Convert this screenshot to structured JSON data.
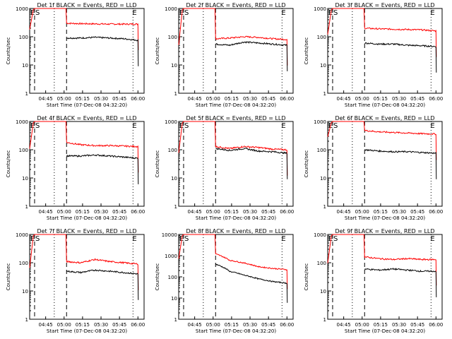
{
  "chart_data": [
    {
      "type": "line",
      "title": "Det 1f BLACK = Events, RED = LLD",
      "ylabel": "Counts/sec",
      "xlabel": "Start Time (07-Dec-08 04:32:20)",
      "yscale": "log",
      "ylim": [
        1,
        1000
      ],
      "y_ticks": [
        "1",
        "10",
        "100",
        "1000"
      ],
      "x_ticks": [
        "04:45",
        "05:00",
        "05:15",
        "05:30",
        "05:45",
        "06:00"
      ],
      "markers": {
        "dashed_left": "04:36",
        "dotted": "04:52",
        "dashed_right": "05:02",
        "dotted_right": "05:56"
      },
      "annotations": [
        "E",
        "S",
        "E"
      ],
      "series": [
        {
          "color": "#ff0000",
          "values": [
            300,
            290,
            285,
            280,
            280,
            280
          ]
        },
        {
          "color": "#000000",
          "values": [
            90,
            90,
            95,
            90,
            85,
            75
          ]
        }
      ]
    },
    {
      "type": "line",
      "title": "Det 2f BLACK = Events, RED = LLD",
      "ylabel": "Counts/sec",
      "xlabel": "Start Time (07-Dec-08 04:32:20)",
      "yscale": "log",
      "ylim": [
        1,
        1000
      ],
      "y_ticks": [
        "1",
        "10",
        "100",
        "1000"
      ],
      "x_ticks": [
        "04:45",
        "05:00",
        "05:15",
        "05:30",
        "05:45",
        "06:00"
      ],
      "annotations": [
        "E",
        "S",
        "E"
      ],
      "series": [
        {
          "color": "#ff0000",
          "values": [
            85,
            90,
            100,
            95,
            85,
            80
          ]
        },
        {
          "color": "#000000",
          "values": [
            55,
            50,
            65,
            60,
            55,
            50
          ]
        }
      ]
    },
    {
      "type": "line",
      "title": "Det 3f BLACK = Events, RED = LLD",
      "ylabel": "Counts/sec",
      "xlabel": "Start Time (07-Dec-08 04:32:20)",
      "yscale": "log",
      "ylim": [
        1,
        1000
      ],
      "y_ticks": [
        "1",
        "10",
        "100",
        "1000"
      ],
      "x_ticks": [
        "04:45",
        "05:00",
        "05:15",
        "05:30",
        "05:45",
        "06:00"
      ],
      "annotations": [
        "E",
        "S",
        "E"
      ],
      "series": [
        {
          "color": "#ff0000",
          "values": [
            200,
            190,
            185,
            180,
            175,
            160
          ]
        },
        {
          "color": "#000000",
          "values": [
            60,
            55,
            55,
            50,
            48,
            45
          ]
        }
      ]
    },
    {
      "type": "line",
      "title": "Det 4f BLACK = Events, RED = LLD",
      "ylabel": "Counts/sec",
      "xlabel": "Start Time (07-Dec-08 04:32:20)",
      "yscale": "log",
      "ylim": [
        1,
        1000
      ],
      "y_ticks": [
        "1",
        "10",
        "100",
        "1000"
      ],
      "x_ticks": [
        "04:45",
        "05:00",
        "05:15",
        "05:30",
        "05:45",
        "06:00"
      ],
      "annotations": [
        "E",
        "S",
        "E"
      ],
      "series": [
        {
          "color": "#ff0000",
          "values": [
            180,
            150,
            140,
            140,
            135,
            130
          ]
        },
        {
          "color": "#000000",
          "values": [
            60,
            60,
            65,
            60,
            55,
            50
          ]
        }
      ]
    },
    {
      "type": "line",
      "title": "Det 5f BLACK = Events, RED = LLD",
      "ylabel": "Counts/sec",
      "xlabel": "Start Time (07-Dec-08 04:32:20)",
      "yscale": "log",
      "ylim": [
        1,
        1000
      ],
      "y_ticks": [
        "1",
        "10",
        "100",
        "1000"
      ],
      "x_ticks": [
        "04:45",
        "05:00",
        "05:15",
        "05:30",
        "05:45",
        "06:00"
      ],
      "annotations": [
        "E",
        "S",
        "E"
      ],
      "series": [
        {
          "color": "#ff0000",
          "values": [
            130,
            110,
            130,
            120,
            105,
            100
          ]
        },
        {
          "color": "#000000",
          "values": [
            110,
            95,
            110,
            90,
            85,
            75
          ]
        }
      ]
    },
    {
      "type": "line",
      "title": "Det 6f BLACK = Events, RED = LLD",
      "ylabel": "Counts/sec",
      "xlabel": "Start Time (07-Dec-08 04:32:20)",
      "yscale": "log",
      "ylim": [
        1,
        1000
      ],
      "y_ticks": [
        "1",
        "10",
        "100",
        "1000"
      ],
      "x_ticks": [
        "04:45",
        "05:00",
        "05:15",
        "05:30",
        "05:45",
        "06:00"
      ],
      "annotations": [
        "E",
        "S",
        "E"
      ],
      "series": [
        {
          "color": "#ff0000",
          "values": [
            480,
            430,
            410,
            390,
            370,
            360
          ]
        },
        {
          "color": "#000000",
          "values": [
            100,
            90,
            85,
            85,
            80,
            75
          ]
        }
      ]
    },
    {
      "type": "line",
      "title": "Det 7f BLACK = Events, RED = LLD",
      "ylabel": "Counts/sec",
      "xlabel": "Start Time (07-Dec-08 04:32:20)",
      "yscale": "log",
      "ylim": [
        1,
        1000
      ],
      "y_ticks": [
        "1",
        "10",
        "100",
        "1000"
      ],
      "x_ticks": [
        "04:45",
        "05:00",
        "05:15",
        "05:30",
        "05:45",
        "06:00"
      ],
      "annotations": [
        "E",
        "S",
        "E"
      ],
      "series": [
        {
          "color": "#ff0000",
          "values": [
            110,
            100,
            130,
            110,
            100,
            90
          ]
        },
        {
          "color": "#000000",
          "values": [
            50,
            45,
            55,
            50,
            45,
            40
          ]
        }
      ]
    },
    {
      "type": "line",
      "title": "Det 8f BLACK = Events, RED = LLD",
      "ylabel": "Counts/sec",
      "xlabel": "Start Time (07-Dec-08 04:32:20)",
      "yscale": "log",
      "ylim": [
        1,
        10000
      ],
      "y_ticks": [
        "1",
        "10",
        "100",
        "1000",
        "10000"
      ],
      "x_ticks": [
        "04:45",
        "05:00",
        "05:15",
        "05:30",
        "05:45",
        "06:00"
      ],
      "annotations": [
        "E",
        "S",
        "E"
      ],
      "series": [
        {
          "color": "#ff0000",
          "values": [
            1200,
            600,
            450,
            300,
            250,
            220
          ]
        },
        {
          "color": "#000000",
          "values": [
            400,
            180,
            120,
            80,
            60,
            50
          ]
        }
      ]
    },
    {
      "type": "line",
      "title": "Det 9f BLACK = Events, RED = LLD",
      "ylabel": "Counts/sec",
      "xlabel": "Start Time (07-Dec-08 04:32:20)",
      "yscale": "log",
      "ylim": [
        1,
        1000
      ],
      "y_ticks": [
        "1",
        "10",
        "100",
        "1000"
      ],
      "x_ticks": [
        "04:45",
        "05:00",
        "05:15",
        "05:30",
        "05:45",
        "06:00"
      ],
      "annotations": [
        "E",
        "S",
        "E"
      ],
      "series": [
        {
          "color": "#ff0000",
          "values": [
            160,
            140,
            130,
            140,
            130,
            130
          ]
        },
        {
          "color": "#000000",
          "values": [
            60,
            55,
            60,
            55,
            50,
            50
          ]
        }
      ]
    }
  ]
}
